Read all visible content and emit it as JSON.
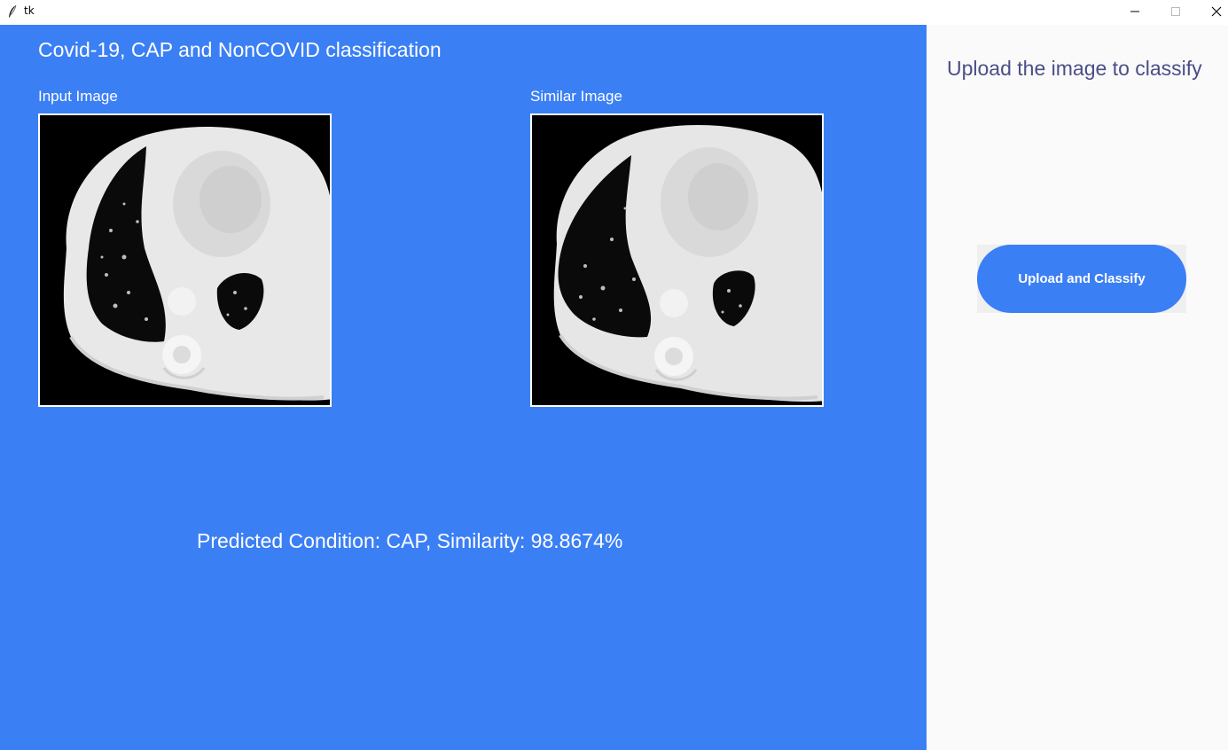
{
  "window": {
    "title": "tk",
    "app_icon": "feather-icon",
    "controls": [
      "minimize-icon",
      "maximize-icon",
      "close-icon"
    ]
  },
  "main": {
    "title": "Covid-19, CAP and NonCOVID classification",
    "input_label": "Input Image",
    "similar_label": "Similar Image",
    "prediction_text": "Predicted Condition: CAP, Similarity: 98.8674%",
    "background_color": "#3b7ff5"
  },
  "sidebar": {
    "heading": "Upload the image to classify",
    "upload_button_label": "Upload and Classify",
    "background_color": "#fafafa",
    "heading_color": "#4a4e86"
  }
}
